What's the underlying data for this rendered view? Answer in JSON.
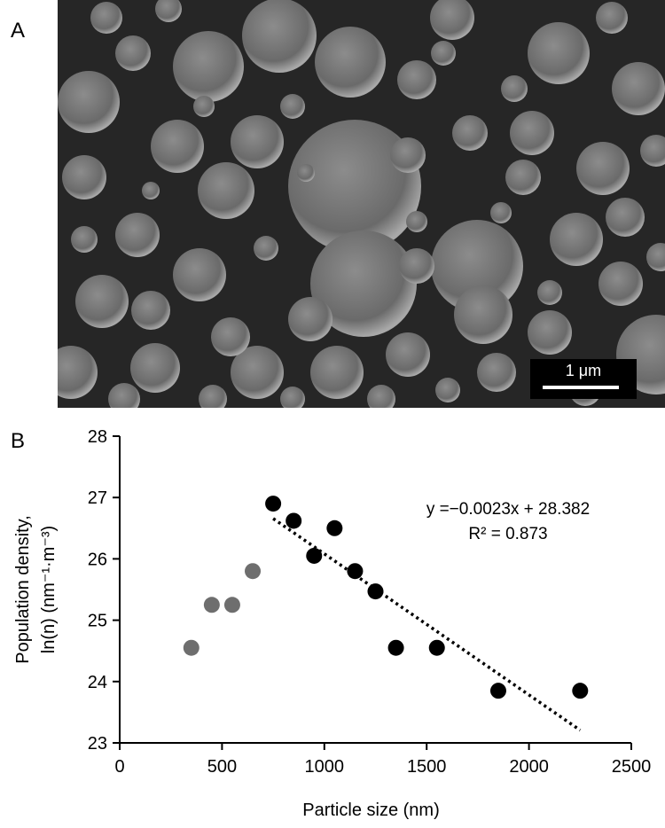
{
  "panel_a": {
    "label": "A",
    "scale_bar": "1 μm"
  },
  "chart_data": {
    "type": "scatter",
    "panel_label": "B",
    "xlabel": "Particle size (nm)",
    "ylabel": [
      "Population density,",
      "ln(n) (nm⁻¹·m⁻³)"
    ],
    "annotations": [
      "y =−0.0023x + 28.382",
      "R² = 0.873"
    ],
    "xlim": [
      0,
      2500
    ],
    "xticks": [
      0,
      500,
      1000,
      1500,
      2000,
      2500
    ],
    "ylim": [
      23,
      28
    ],
    "yticks": [
      23,
      24,
      25,
      26,
      27,
      28
    ],
    "series": [
      {
        "color": "#6e6e6e",
        "x": [
          350,
          450,
          550,
          650
        ],
        "values": [
          24.55,
          25.25,
          25.25,
          25.8
        ]
      },
      {
        "color": "#000000",
        "x": [
          750,
          850,
          950,
          1050,
          1150,
          1250,
          1350,
          1550,
          1850,
          2250
        ],
        "values": [
          26.9,
          26.62,
          26.05,
          26.5,
          25.8,
          25.47,
          24.55,
          24.55,
          23.85,
          23.85
        ]
      }
    ],
    "trendline": {
      "color": "#000000",
      "style": "dotted",
      "x": [
        750,
        2250
      ],
      "values": [
        26.657,
        23.207
      ]
    }
  }
}
